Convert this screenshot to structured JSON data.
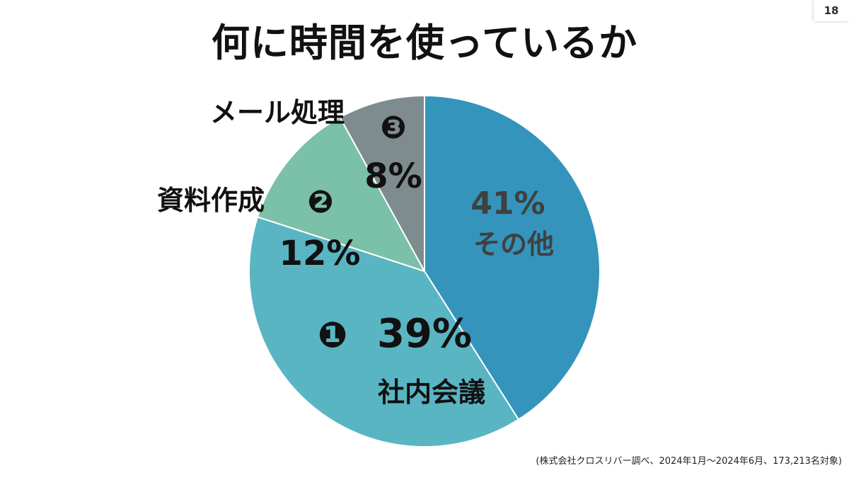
{
  "slide": {
    "page_number": "18",
    "title": "何に時間を使っているか",
    "source_note": "(株式会社クロスリバー調べ、2024年1月～2024年6月、173,213名対象)"
  },
  "colors": {
    "other": "#3494BC",
    "meetings": "#5AB5C3",
    "documents": "#7BC0A8",
    "email": "#7F8C8F",
    "other_text": "#404040",
    "dark_text": "#111111"
  },
  "chart_data": {
    "type": "pie",
    "title": "何に時間を使っているか",
    "slices": [
      {
        "key": "other",
        "label": "その他",
        "value_label": "41%",
        "value": 41,
        "rank_marker": ""
      },
      {
        "key": "meetings",
        "label": "社内会議",
        "value_label": "39%",
        "value": 39,
        "rank_marker": "❶"
      },
      {
        "key": "documents",
        "label": "資料作成",
        "value_label": "12%",
        "value": 12,
        "rank_marker": "❷"
      },
      {
        "key": "email",
        "label": "メール処理",
        "value_label": "8%",
        "value": 8,
        "rank_marker": "❸"
      }
    ]
  }
}
